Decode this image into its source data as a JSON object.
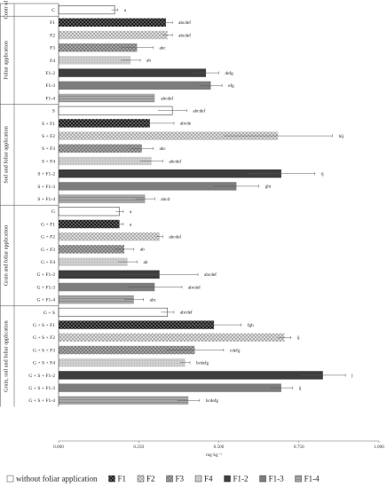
{
  "chart_data": {
    "type": "bar",
    "orientation": "horizontal",
    "xlabel": "mg·kg⁻¹",
    "xlim": [
      0,
      1.0
    ],
    "xticks": [
      "0.000",
      "0.250",
      "0.500",
      "0.750",
      "1.000"
    ],
    "grid": false,
    "legend_position": "bottom",
    "legend": [
      {
        "label": "without foliar application",
        "pattern": "white"
      },
      {
        "label": "F1",
        "pattern": "checker"
      },
      {
        "label": "F2",
        "pattern": "crosshatch"
      },
      {
        "label": "F3",
        "pattern": "checker-mid"
      },
      {
        "label": "F4",
        "pattern": "light-dots"
      },
      {
        "label": "F1-2",
        "pattern": "dark"
      },
      {
        "label": "F1-3",
        "pattern": "mid"
      },
      {
        "label": "F1-4",
        "pattern": "stripes"
      }
    ],
    "groups": [
      {
        "label": "Contr ol",
        "rows": [
          {
            "category": "C",
            "value": 0.175,
            "error": 0.01,
            "sig": "a",
            "pattern": "white"
          }
        ]
      },
      {
        "label": "Foliar application",
        "rows": [
          {
            "category": "F1",
            "value": 0.335,
            "error": 0.02,
            "sig": "abcdef",
            "pattern": "checker"
          },
          {
            "category": "F2",
            "value": 0.34,
            "error": 0.015,
            "sig": "abcdef",
            "pattern": "crosshatch"
          },
          {
            "category": "F3",
            "value": 0.245,
            "error": 0.05,
            "sig": "abc",
            "pattern": "checker-mid"
          },
          {
            "category": "F4",
            "value": 0.225,
            "error": 0.03,
            "sig": "ab",
            "pattern": "light-dots"
          },
          {
            "category": "F1-2",
            "value": 0.46,
            "error": 0.04,
            "sig": "defg",
            "pattern": "dark"
          },
          {
            "category": "F1-3",
            "value": 0.475,
            "error": 0.035,
            "sig": "efg",
            "pattern": "mid"
          },
          {
            "category": "F1-4",
            "value": 0.3,
            "error": 0.0,
            "sig": "abcdef",
            "pattern": "stripes"
          }
        ]
      },
      {
        "label": "Soil and foliar application",
        "rows": [
          {
            "category": "S",
            "value": 0.355,
            "error": 0.045,
            "sig": "abcdef",
            "pattern": "white"
          },
          {
            "category": "S + F1",
            "value": 0.285,
            "error": 0.075,
            "sig": "abcde",
            "pattern": "checker"
          },
          {
            "category": "S + F2",
            "value": 0.685,
            "error": 0.17,
            "sig": "hij",
            "pattern": "crosshatch"
          },
          {
            "category": "S + F3",
            "value": 0.26,
            "error": 0.035,
            "sig": "abc",
            "pattern": "checker-mid"
          },
          {
            "category": "S + F4",
            "value": 0.29,
            "error": 0.035,
            "sig": "abcdef",
            "pattern": "light-dots"
          },
          {
            "category": "S + F1-2",
            "value": 0.695,
            "error": 0.105,
            "sig": "ij",
            "pattern": "dark"
          },
          {
            "category": "S + F1-3",
            "value": 0.555,
            "error": 0.07,
            "sig": "ghi",
            "pattern": "mid"
          },
          {
            "category": "S + F1-4",
            "value": 0.27,
            "error": 0.03,
            "sig": "abcd",
            "pattern": "stripes"
          }
        ]
      },
      {
        "label": "Grain and foliar application",
        "rows": [
          {
            "category": "G",
            "value": 0.19,
            "error": 0.012,
            "sig": "a",
            "pattern": "white"
          },
          {
            "category": "G + F1",
            "value": 0.19,
            "error": 0.012,
            "sig": "a",
            "pattern": "checker"
          },
          {
            "category": "G + F2",
            "value": 0.315,
            "error": 0.01,
            "sig": "abcdef",
            "pattern": "crosshatch"
          },
          {
            "category": "G + F3",
            "value": 0.205,
            "error": 0.03,
            "sig": "ab",
            "pattern": "checker-mid"
          },
          {
            "category": "G + F4",
            "value": 0.215,
            "error": 0.03,
            "sig": "ab",
            "pattern": "light-dots"
          },
          {
            "category": "G + F1-2",
            "value": 0.315,
            "error": 0.12,
            "sig": "abcdef",
            "pattern": "dark"
          },
          {
            "category": "G + F1-3",
            "value": 0.3,
            "error": 0.085,
            "sig": "abcdef",
            "pattern": "mid"
          },
          {
            "category": "G + F1-4",
            "value": 0.235,
            "error": 0.03,
            "sig": "abc",
            "pattern": "stripes"
          }
        ]
      },
      {
        "label": "Grain, soil and foliar application",
        "rows": [
          {
            "category": "G + S",
            "value": 0.34,
            "error": 0.02,
            "sig": "abcdef",
            "pattern": "white"
          },
          {
            "category": "G + S + F1",
            "value": 0.485,
            "error": 0.085,
            "sig": "fgh",
            "pattern": "checker"
          },
          {
            "category": "G + S + F2",
            "value": 0.705,
            "error": 0.02,
            "sig": "ij",
            "pattern": "crosshatch"
          },
          {
            "category": "G + S + F3",
            "value": 0.425,
            "error": 0.09,
            "sig": "cdefg",
            "pattern": "checker-mid"
          },
          {
            "category": "G + S + F4",
            "value": 0.395,
            "error": 0.015,
            "sig": "bcdefg",
            "pattern": "light-dots"
          },
          {
            "category": "G + S + F1-2",
            "value": 0.825,
            "error": 0.07,
            "sig": "j",
            "pattern": "dark"
          },
          {
            "category": "G + S + F1-3",
            "value": 0.695,
            "error": 0.035,
            "sig": "ij",
            "pattern": "mid"
          },
          {
            "category": "G + S + F1-4",
            "value": 0.405,
            "error": 0.035,
            "sig": "bcdefg",
            "pattern": "stripes"
          }
        ]
      }
    ]
  }
}
